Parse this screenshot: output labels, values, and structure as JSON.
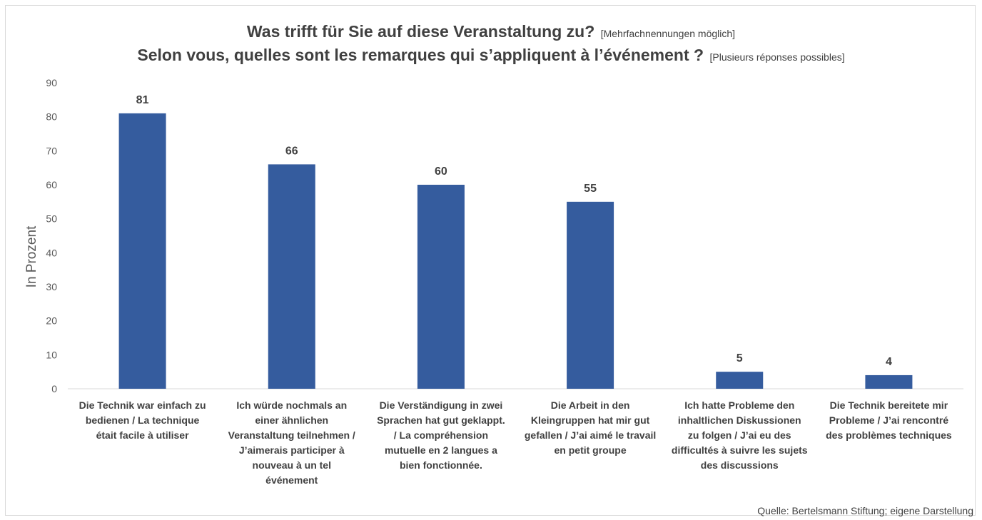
{
  "chart_data": {
    "type": "bar",
    "title_line1": "Was trifft für Sie auf diese Veranstaltung zu?",
    "title_line1_note": "[Mehrfachnennungen möglich]",
    "title_line2": "Selon vous, quelles sont les remarques qui s’appliquent à l’événement ?",
    "title_line2_note": "[Plusieurs réponses possibles]",
    "ylabel": "In Prozent",
    "xlabel": "",
    "ylim": [
      0,
      90
    ],
    "yticks": [
      "0",
      "10",
      "20",
      "30",
      "40",
      "50",
      "60",
      "70",
      "80",
      "90"
    ],
    "categories": [
      [
        "Die Technik war einfach zu",
        "bedienen / La technique",
        "était facile à utiliser"
      ],
      [
        "Ich würde nochmals an",
        "einer ähnlichen",
        "Veranstaltung teilnehmen /",
        "J’aimerais participer à",
        "nouveau à un tel",
        "événement"
      ],
      [
        "Die Verständigung in zwei",
        "Sprachen hat gut geklappt.",
        "/ La compréhension",
        "mutuelle en 2 langues a",
        "bien fonctionnée."
      ],
      [
        "Die Arbeit in den",
        "Kleingruppen hat mir gut",
        "gefallen / J’ai aimé le travail",
        "en petit groupe"
      ],
      [
        "Ich hatte Probleme den",
        "inhaltlichen Diskussionen",
        "zu folgen / J’ai eu des",
        "difficultés à suivre les sujets",
        "des discussions"
      ],
      [
        "Die Technik bereitete mir",
        "Probleme / J’ai rencontré",
        "des problèmes techniques"
      ]
    ],
    "values": [
      81,
      66,
      60,
      55,
      5,
      4
    ],
    "data_labels": [
      "81",
      "66",
      "60",
      "55",
      "5",
      "4"
    ],
    "bar_color": "#355c9e",
    "grid": false,
    "legend": "none"
  },
  "source": "Quelle: Bertelsmann Stiftung; eigene Darstellung"
}
